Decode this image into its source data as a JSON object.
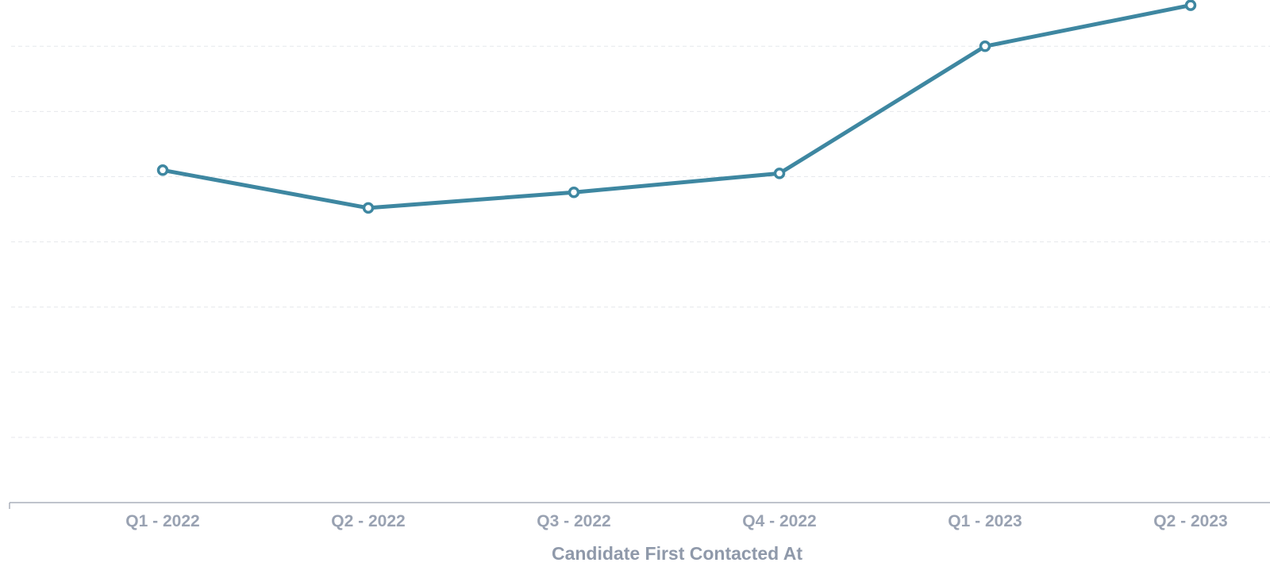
{
  "chart_data": {
    "type": "line",
    "title": "",
    "xlabel": "Candidate First Contacted At",
    "ylabel": "",
    "categories": [
      "Q1 - 2022",
      "Q2 - 2022",
      "Q3 - 2022",
      "Q4 - 2022",
      "Q1 - 2023",
      "Q2 - 2023"
    ],
    "series": [
      {
        "values": [
          5.1,
          4.52,
          4.76,
          5.05,
          7.0,
          7.63
        ],
        "color": "#3e87a1"
      }
    ],
    "ylim": [
      0,
      7.7
    ],
    "y_gridlines": [
      1,
      2,
      3,
      4,
      5,
      6,
      7
    ],
    "grid": true,
    "legend": "none"
  }
}
